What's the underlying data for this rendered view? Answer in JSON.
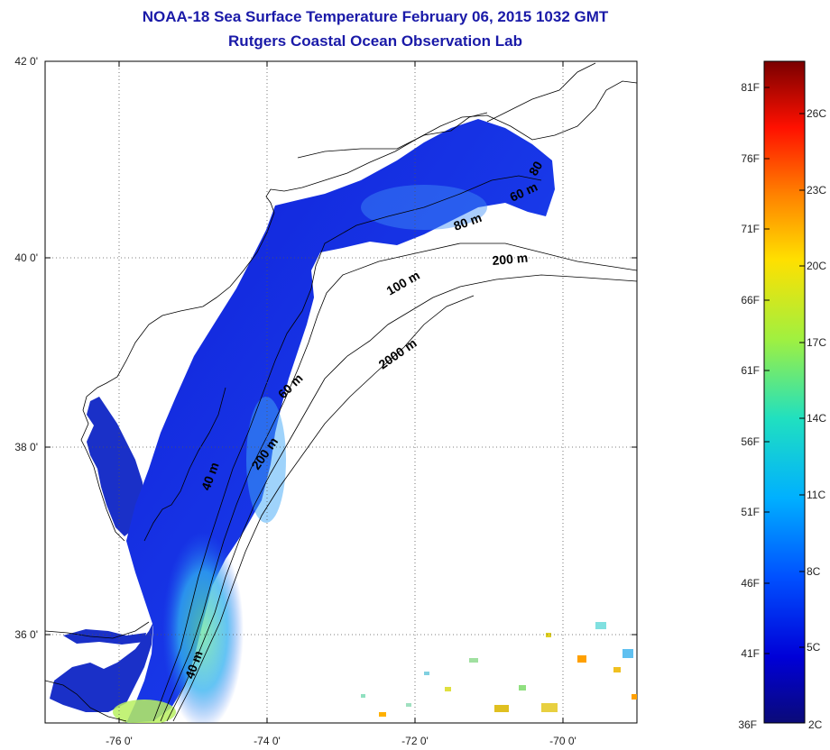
{
  "title": "NOAA-18 Sea Surface Temperature February 06, 2015 1032 GMT",
  "subtitle": "Rutgers Coastal Ocean Observation Lab",
  "colors": {
    "title": "#1a1aa8",
    "colorbar": [
      "#0a0a78",
      "#0000d8",
      "#0050ff",
      "#00b0ff",
      "#20e0c0",
      "#a0f040",
      "#ffe000",
      "#ff8000",
      "#ff1000",
      "#7a0000"
    ]
  },
  "axes": {
    "longitude_ticks": [
      "-76 0'",
      "-74 0'",
      "-72 0'",
      "-70 0'"
    ],
    "latitude_ticks": [
      "42 0'",
      "40 0'",
      "38 0'",
      "36 0'"
    ]
  },
  "contours": [
    {
      "label": "40 m",
      "angle": -70
    },
    {
      "label": "60 m",
      "angle": -45
    },
    {
      "label": "200 m",
      "angle": -55
    },
    {
      "label": "2000 m",
      "angle": -35
    },
    {
      "label": "100 m",
      "angle": -30
    },
    {
      "label": "200 m",
      "angle": -5
    },
    {
      "label": "80 m",
      "angle": -20
    },
    {
      "label": "60 m",
      "angle": -25
    },
    {
      "label": "40 m",
      "angle": -70
    },
    {
      "label": "80",
      "angle": -60
    }
  ],
  "colorbar": {
    "fahrenheit_labels": [
      "81F",
      "76F",
      "71F",
      "66F",
      "61F",
      "56F",
      "51F",
      "46F",
      "41F",
      "36F"
    ],
    "celsius_labels": [
      "26C",
      "23C",
      "20C",
      "17C",
      "14C",
      "11C",
      "8C",
      "5C",
      "2C"
    ]
  }
}
